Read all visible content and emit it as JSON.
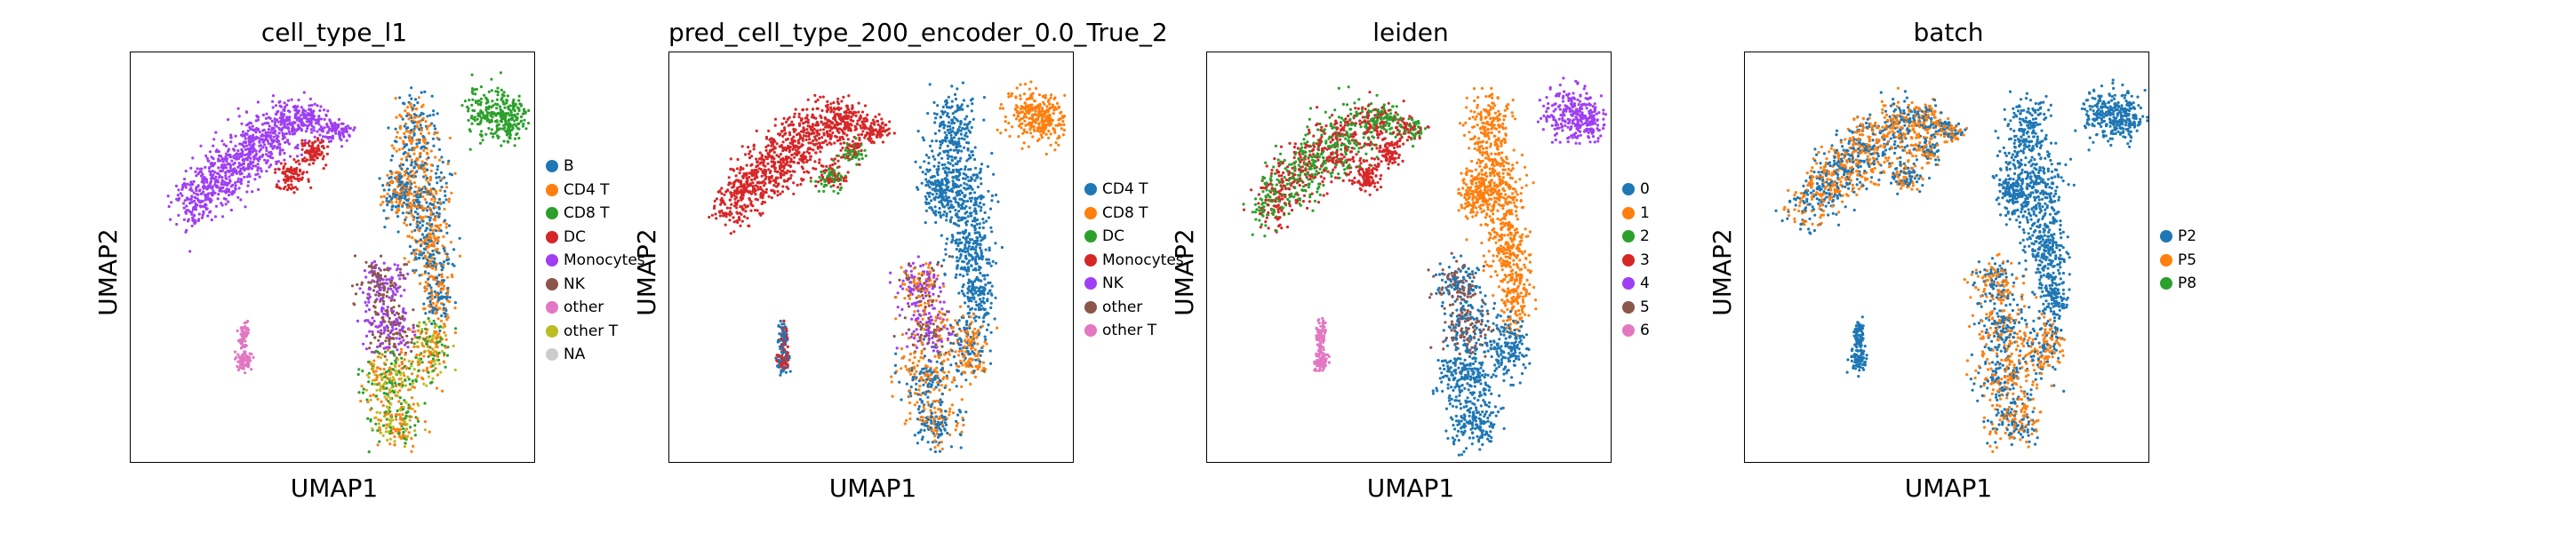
{
  "palette": {
    "blue": "#1f77b4",
    "orange": "#ff7f0e",
    "green": "#2ca02c",
    "red": "#d62728",
    "purple": "#9f3ff3",
    "brown": "#8c564b",
    "pink": "#e377c2",
    "olive": "#bcbd22",
    "grey": "#cccccc"
  },
  "chart_data": [
    {
      "type": "scatter",
      "title": "cell_type_l1",
      "xlabel": "UMAP1",
      "ylabel": "UMAP2",
      "legend_position": "right",
      "grid": false,
      "legend": [
        {
          "label": "B",
          "color": "#1f77b4"
        },
        {
          "label": "CD4 T",
          "color": "#ff7f0e"
        },
        {
          "label": "CD8 T",
          "color": "#2ca02c"
        },
        {
          "label": "DC",
          "color": "#d62728"
        },
        {
          "label": "Monocytes",
          "color": "#9f3ff3"
        },
        {
          "label": "NK",
          "color": "#8c564b"
        },
        {
          "label": "other",
          "color": "#e377c2"
        },
        {
          "label": "other T",
          "color": "#bcbd22"
        },
        {
          "label": "NA",
          "color": "#cccccc"
        }
      ]
    },
    {
      "type": "scatter",
      "title": "pred_cell_type_200_encoder_0.0_True_2",
      "xlabel": "UMAP1",
      "ylabel": "UMAP2",
      "legend_position": "right",
      "grid": false,
      "legend": [
        {
          "label": "CD4 T",
          "color": "#1f77b4"
        },
        {
          "label": "CD8 T",
          "color": "#ff7f0e"
        },
        {
          "label": "DC",
          "color": "#2ca02c"
        },
        {
          "label": "Monocytes",
          "color": "#d62728"
        },
        {
          "label": "NK",
          "color": "#9f3ff3"
        },
        {
          "label": "other",
          "color": "#8c564b"
        },
        {
          "label": "other T",
          "color": "#e377c2"
        }
      ]
    },
    {
      "type": "scatter",
      "title": "leiden",
      "xlabel": "UMAP1",
      "ylabel": "UMAP2",
      "legend_position": "right",
      "grid": false,
      "legend": [
        {
          "label": "0",
          "color": "#1f77b4"
        },
        {
          "label": "1",
          "color": "#ff7f0e"
        },
        {
          "label": "2",
          "color": "#2ca02c"
        },
        {
          "label": "3",
          "color": "#d62728"
        },
        {
          "label": "4",
          "color": "#9f3ff3"
        },
        {
          "label": "5",
          "color": "#8c564b"
        },
        {
          "label": "6",
          "color": "#e377c2"
        }
      ]
    },
    {
      "type": "scatter",
      "title": "batch",
      "xlabel": "UMAP1",
      "ylabel": "UMAP2",
      "legend_position": "right",
      "grid": false,
      "legend": [
        {
          "label": "P2",
          "color": "#1f77b4"
        },
        {
          "label": "P5",
          "color": "#ff7f0e"
        },
        {
          "label": "P8",
          "color": "#2ca02c"
        }
      ]
    }
  ],
  "clusters": {
    "mono": [
      [
        0.17,
        0.36,
        0.05,
        0.075,
        0.55
      ],
      [
        0.24,
        0.29,
        0.07,
        0.08,
        0.6
      ],
      [
        0.31,
        0.23,
        0.07,
        0.07,
        0.62
      ],
      [
        0.38,
        0.18,
        0.06,
        0.06,
        0.4
      ],
      [
        0.44,
        0.16,
        0.045,
        0.035,
        0.0
      ],
      [
        0.5,
        0.19,
        0.04,
        0.025,
        0.0
      ]
    ],
    "dc": [
      [
        0.4,
        0.3,
        0.035,
        0.035,
        0.0
      ],
      [
        0.45,
        0.24,
        0.03,
        0.03,
        0.0
      ]
    ],
    "bcell": [
      [
        0.89,
        0.15,
        0.055,
        0.065,
        0.0
      ],
      [
        0.94,
        0.16,
        0.04,
        0.05,
        0.0
      ]
    ],
    "tupper": [
      [
        0.7,
        0.2,
        0.055,
        0.09,
        0.0
      ],
      [
        0.72,
        0.34,
        0.065,
        0.08,
        0.0
      ],
      [
        0.66,
        0.34,
        0.035,
        0.06,
        0.0
      ],
      [
        0.74,
        0.47,
        0.05,
        0.08,
        0.0
      ],
      [
        0.76,
        0.59,
        0.035,
        0.08,
        0.0
      ]
    ],
    "nk": [
      [
        0.62,
        0.56,
        0.055,
        0.055,
        0.0
      ],
      [
        0.64,
        0.67,
        0.06,
        0.07,
        0.0
      ]
    ],
    "tlower": [
      [
        0.64,
        0.79,
        0.07,
        0.06,
        0.0
      ],
      [
        0.66,
        0.9,
        0.06,
        0.055,
        0.0
      ],
      [
        0.74,
        0.72,
        0.045,
        0.07,
        0.0
      ]
    ],
    "other": [
      [
        0.28,
        0.69,
        0.012,
        0.035,
        0.0
      ],
      [
        0.28,
        0.75,
        0.018,
        0.025,
        0.0
      ]
    ]
  },
  "panel_colors": [
    {
      "mono": [
        "#9f3ff3"
      ],
      "dc": [
        "#d62728"
      ],
      "bcell": [
        "#2ca02c"
      ],
      "tupper": [
        "#ff7f0e",
        "#1f77b4"
      ],
      "nk": [
        "#8c564b",
        "#9f3ff3"
      ],
      "tlower": [
        "#2ca02c",
        "#bcbd22",
        "#ff7f0e"
      ],
      "other": [
        "#e377c2"
      ]
    },
    {
      "mono": [
        "#d62728"
      ],
      "dc": [
        "#2ca02c",
        "#d62728"
      ],
      "bcell": [
        "#ff7f0e"
      ],
      "tupper": [
        "#1f77b4"
      ],
      "nk": [
        "#9f3ff3",
        "#8c564b",
        "#ff7f0e"
      ],
      "tlower": [
        "#ff7f0e",
        "#1f77b4"
      ],
      "other": [
        "#1f77b4",
        "#d62728"
      ]
    },
    {
      "mono": [
        "#2ca02c",
        "#d62728"
      ],
      "dc": [
        "#d62728"
      ],
      "bcell": [
        "#9f3ff3"
      ],
      "tupper": [
        "#ff7f0e"
      ],
      "nk": [
        "#1f77b4",
        "#8c564b"
      ],
      "tlower": [
        "#1f77b4"
      ],
      "other": [
        "#e377c2"
      ]
    },
    {
      "mono": [
        "#1f77b4",
        "#ff7f0e"
      ],
      "dc": [
        "#1f77b4",
        "#ff7f0e"
      ],
      "bcell": [
        "#1f77b4"
      ],
      "tupper": [
        "#1f77b4"
      ],
      "nk": [
        "#1f77b4",
        "#ff7f0e"
      ],
      "tlower": [
        "#1f77b4",
        "#ff7f0e"
      ],
      "other": [
        "#1f77b4"
      ]
    }
  ]
}
